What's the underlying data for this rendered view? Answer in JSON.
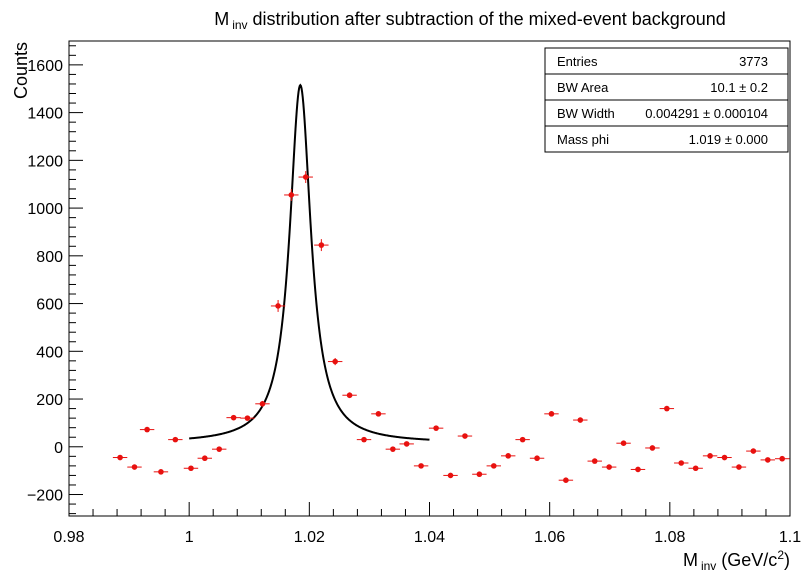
{
  "chart_data": {
    "type": "scatter",
    "title": "M",
    "title_sub": "inv",
    "title_rest": " distribution after subtraction of the mixed-event background",
    "xlabel": "M",
    "xlabel_sub": "inv",
    "xlabel_rest": " (GeV/c",
    "xlabel_sup": "2",
    "xlabel_end": ")",
    "ylabel": "Counts",
    "xlim": [
      0.98,
      1.1
    ],
    "ylim": [
      -290,
      1700
    ],
    "x_ticks": [
      0.98,
      1.0,
      1.02,
      1.04,
      1.06,
      1.08,
      1.1
    ],
    "x_tick_labels": [
      "0.98",
      "1",
      "1.02",
      "1.04",
      "1.06",
      "1.08",
      "1.1"
    ],
    "y_ticks": [
      -200,
      0,
      200,
      400,
      600,
      800,
      1000,
      1200,
      1400,
      1600
    ],
    "y_tick_labels": [
      "−200",
      "0",
      "200",
      "400",
      "600",
      "800",
      "1000",
      "1200",
      "1400",
      "1600"
    ],
    "bin_half_width": 0.0012,
    "points": [
      {
        "x": 0.9885,
        "y": -45,
        "err": 8
      },
      {
        "x": 0.9909,
        "y": -85,
        "err": 8
      },
      {
        "x": 0.993,
        "y": 72,
        "err": 8
      },
      {
        "x": 0.9953,
        "y": -105,
        "err": 8
      },
      {
        "x": 0.9977,
        "y": 30,
        "err": 8
      },
      {
        "x": 1.0003,
        "y": -90,
        "err": 8
      },
      {
        "x": 1.0026,
        "y": -48,
        "err": 8
      },
      {
        "x": 1.005,
        "y": -10,
        "err": 8
      },
      {
        "x": 1.0074,
        "y": 122,
        "err": 10
      },
      {
        "x": 1.0097,
        "y": 120,
        "err": 10
      },
      {
        "x": 1.0122,
        "y": 180,
        "err": 12
      },
      {
        "x": 1.0148,
        "y": 590,
        "err": 25
      },
      {
        "x": 1.017,
        "y": 1055,
        "err": 25
      },
      {
        "x": 1.0194,
        "y": 1130,
        "err": 25
      },
      {
        "x": 1.022,
        "y": 845,
        "err": 25
      },
      {
        "x": 1.0243,
        "y": 357,
        "err": 15
      },
      {
        "x": 1.0267,
        "y": 216,
        "err": 12
      },
      {
        "x": 1.0291,
        "y": 30,
        "err": 8
      },
      {
        "x": 1.0315,
        "y": 138,
        "err": 10
      },
      {
        "x": 1.0339,
        "y": -10,
        "err": 8
      },
      {
        "x": 1.0362,
        "y": 12,
        "err": 8
      },
      {
        "x": 1.0386,
        "y": -80,
        "err": 8
      },
      {
        "x": 1.0411,
        "y": 78,
        "err": 8
      },
      {
        "x": 1.0435,
        "y": -120,
        "err": 8
      },
      {
        "x": 1.0459,
        "y": 45,
        "err": 8
      },
      {
        "x": 1.0483,
        "y": -115,
        "err": 8
      },
      {
        "x": 1.0507,
        "y": -80,
        "err": 8
      },
      {
        "x": 1.0531,
        "y": -38,
        "err": 8
      },
      {
        "x": 1.0555,
        "y": 30,
        "err": 8
      },
      {
        "x": 1.0579,
        "y": -48,
        "err": 8
      },
      {
        "x": 1.0603,
        "y": 138,
        "err": 10
      },
      {
        "x": 1.0627,
        "y": -140,
        "err": 8
      },
      {
        "x": 1.0651,
        "y": 112,
        "err": 10
      },
      {
        "x": 1.0675,
        "y": -60,
        "err": 8
      },
      {
        "x": 1.0699,
        "y": -85,
        "err": 8
      },
      {
        "x": 1.0723,
        "y": 15,
        "err": 8
      },
      {
        "x": 1.0747,
        "y": -95,
        "err": 8
      },
      {
        "x": 1.0771,
        "y": -5,
        "err": 8
      },
      {
        "x": 1.0795,
        "y": 160,
        "err": 10
      },
      {
        "x": 1.0819,
        "y": -68,
        "err": 8
      },
      {
        "x": 1.0843,
        "y": -90,
        "err": 8
      },
      {
        "x": 1.0867,
        "y": -38,
        "err": 8
      },
      {
        "x": 1.0891,
        "y": -45,
        "err": 8
      },
      {
        "x": 1.0915,
        "y": -85,
        "err": 8
      },
      {
        "x": 1.0939,
        "y": -18,
        "err": 8
      },
      {
        "x": 1.0963,
        "y": -55,
        "err": 8
      },
      {
        "x": 1.0987,
        "y": -50,
        "err": 8
      }
    ],
    "fit": {
      "function": "breit-wigner",
      "x_range": [
        1.0,
        1.04
      ],
      "mass": 1.0185,
      "width": 0.004291,
      "peak": 1500,
      "offset": 15
    },
    "colors": {
      "points": "#e8110f",
      "fit": "#000000"
    },
    "stats_box": {
      "position": "top-right",
      "rows": [
        {
          "label": "Entries",
          "value": "3773"
        },
        {
          "label": "BW Area",
          "value": "10.1 ± 0.2"
        },
        {
          "label": "BW Width",
          "value": "0.004291 ± 0.000104"
        },
        {
          "label": "Mass phi",
          "value": "1.019 ± 0.000"
        }
      ]
    }
  }
}
